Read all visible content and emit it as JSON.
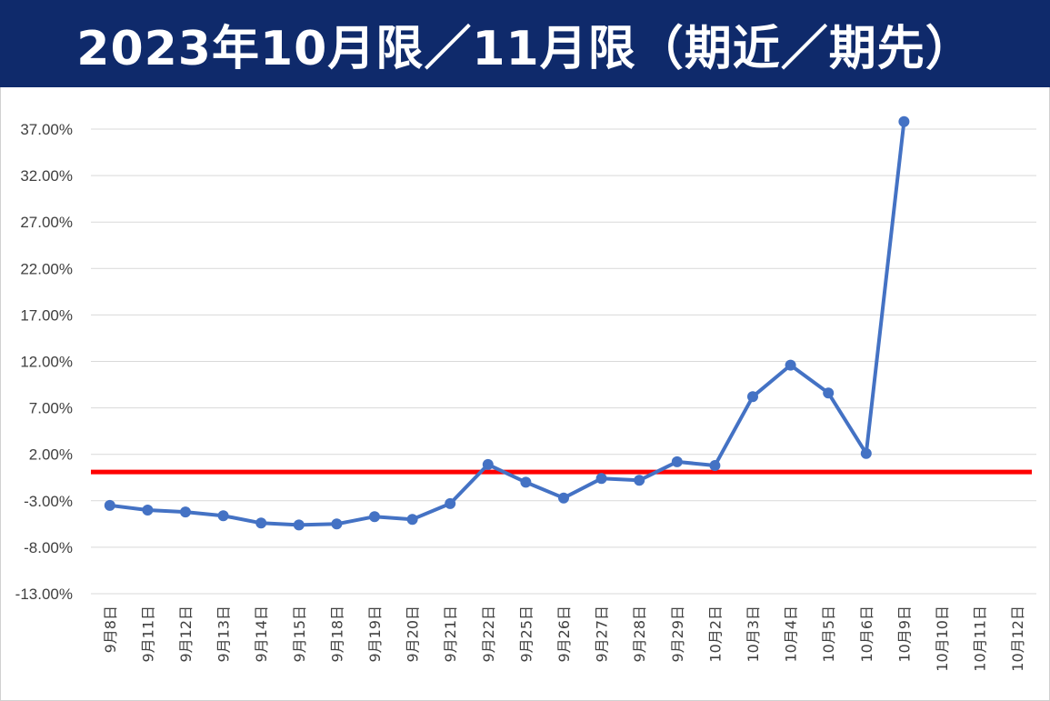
{
  "title": "2023年10月限／11月限（期近／期先）",
  "chart_data": {
    "type": "line",
    "title": "2023年10月限／11月限（期近／期先）",
    "xlabel": "",
    "ylabel": "",
    "categories": [
      "9月8日",
      "9月11日",
      "9月12日",
      "9月13日",
      "9月14日",
      "9月15日",
      "9月18日",
      "9月19日",
      "9月20日",
      "9月21日",
      "9月22日",
      "9月25日",
      "9月26日",
      "9月27日",
      "9月28日",
      "9月29日",
      "10月2日",
      "10月3日",
      "10月4日",
      "10月5日",
      "10月6日",
      "10月9日",
      "10月10日",
      "10月11日",
      "10月12日"
    ],
    "series": [
      {
        "name": "",
        "color": "#4472c4",
        "values": [
          -3.5,
          -4.0,
          -4.2,
          -4.6,
          -5.4,
          -5.6,
          -5.5,
          -4.7,
          -5.0,
          -3.3,
          0.9,
          -1.0,
          -2.7,
          -0.6,
          -0.8,
          1.2,
          0.8,
          8.2,
          11.6,
          8.6,
          2.1,
          37.8,
          null,
          null,
          null
        ]
      }
    ],
    "reference_line": {
      "value": 0.1,
      "color": "#ff0000"
    },
    "y_ticks": [
      "37.00%",
      "32.00%",
      "27.00%",
      "22.00%",
      "17.00%",
      "12.00%",
      "7.00%",
      "2.00%",
      "-3.00%",
      "-8.00%",
      "-13.00%"
    ],
    "ylim": [
      -13,
      37
    ],
    "grid": true,
    "legend": "none"
  }
}
